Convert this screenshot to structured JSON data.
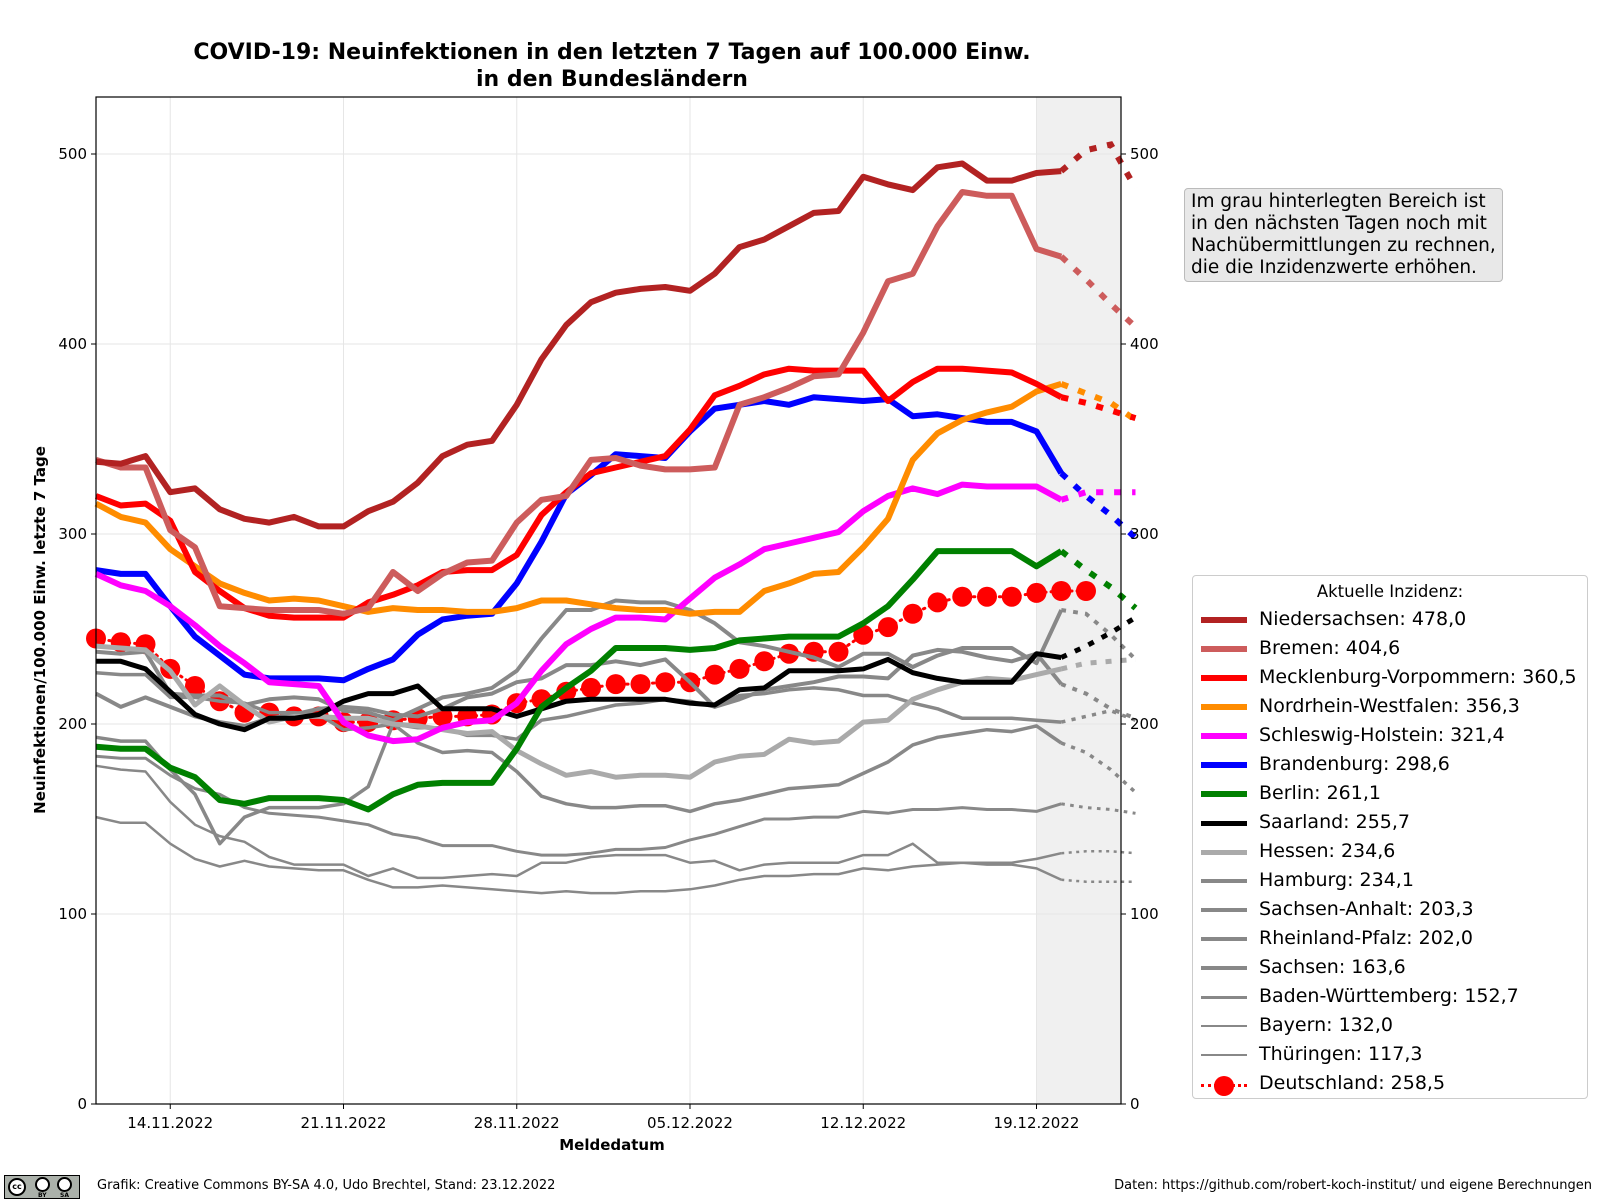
{
  "chart_data": {
    "type": "line",
    "title": "COVID-19: Neuinfektionen in den letzten 7 Tagen auf 100.000 Einw.",
    "subtitle": "in den Bundesländern",
    "xlabel": "Meldedatum",
    "ylabel": "Neuinfektionen/100.000 Einw. letzte 7 Tage",
    "ylim": [
      0,
      530
    ],
    "yticks": [
      0,
      100,
      200,
      300,
      400,
      500
    ],
    "ytick_labels": [
      "0",
      "100",
      "200",
      "300",
      "400",
      "500"
    ],
    "xtick_labels": [
      "14.11.2022",
      "21.11.2022",
      "28.11.2022",
      "05.12.2022",
      "12.12.2022",
      "19.12.2022"
    ],
    "x_start_date": "11.11.2022",
    "x_solid_end_date": "20.12.2022",
    "x_extrapolated_dates": [
      "21.12.2022",
      "22.12.2022",
      "23.12.2022"
    ],
    "grid": true,
    "legend_position": "right",
    "shaded_region_from": "19.12.2022",
    "legend_title": "Aktuelle Inzidenz:",
    "series": [
      {
        "name": "Niedersachsen",
        "current": "478,0",
        "color": "#b22222",
        "width": 6,
        "values": [
          338,
          337,
          341,
          322,
          324,
          313,
          308,
          306,
          309,
          304,
          304,
          312,
          317,
          327,
          341,
          347,
          349,
          368,
          392,
          410,
          422,
          427,
          429,
          430,
          428,
          437,
          451,
          455,
          462,
          469,
          470,
          488,
          484,
          481,
          493,
          495,
          486,
          486,
          490,
          491
        ],
        "extrapolated": [
          502,
          505,
          482
        ]
      },
      {
        "name": "Bremen",
        "current": "404,6",
        "color": "#cd5c5c",
        "width": 6,
        "values": [
          339,
          335,
          335,
          302,
          293,
          262,
          261,
          260,
          260,
          260,
          258,
          261,
          280,
          270,
          279,
          285,
          286,
          306,
          318,
          320,
          339,
          340,
          336,
          334,
          334,
          335,
          368,
          372,
          377,
          383,
          384,
          406,
          433,
          437,
          462,
          480,
          478,
          478,
          450,
          446
        ],
        "extrapolated": [
          434,
          421,
          409
        ]
      },
      {
        "name": "Mecklenburg-Vorpommern",
        "current": "360,5",
        "color": "#ff0000",
        "width": 6,
        "values": [
          320,
          315,
          316,
          307,
          280,
          270,
          261,
          257,
          256,
          256,
          256,
          264,
          268,
          273,
          280,
          281,
          281,
          289,
          310,
          322,
          332,
          335,
          338,
          341,
          355,
          373,
          378,
          384,
          387,
          386,
          386,
          386,
          370,
          380,
          387,
          387,
          386,
          385,
          379,
          372
        ],
        "extrapolated": [
          369,
          365,
          361
        ]
      },
      {
        "name": "Nordrhein-Westfalen",
        "current": "356,3",
        "color": "#ff8c00",
        "width": 6,
        "values": [
          316,
          309,
          306,
          292,
          283,
          274,
          269,
          265,
          266,
          265,
          262,
          259,
          261,
          260,
          260,
          259,
          259,
          261,
          265,
          265,
          263,
          261,
          260,
          260,
          258,
          259,
          259,
          270,
          274,
          279,
          280,
          293,
          308,
          339,
          353,
          360,
          364,
          367,
          375,
          379
        ],
        "extrapolated": [
          374,
          369,
          360
        ]
      },
      {
        "name": "Schleswig-Holstein",
        "current": "321,4",
        "color": "#ff00ff",
        "width": 6,
        "values": [
          279,
          273,
          270,
          262,
          252,
          241,
          232,
          222,
          221,
          220,
          201,
          194,
          191,
          192,
          198,
          201,
          202,
          211,
          228,
          242,
          250,
          256,
          256,
          255,
          266,
          277,
          284,
          292,
          295,
          298,
          301,
          312,
          320,
          324,
          321,
          326,
          325,
          325,
          325,
          318
        ],
        "extrapolated": [
          322,
          322,
          322
        ]
      },
      {
        "name": "Brandenburg",
        "current": "298,6",
        "color": "#0000ff",
        "width": 6,
        "values": [
          281,
          279,
          279,
          262,
          246,
          236,
          226,
          224,
          224,
          224,
          223,
          229,
          234,
          247,
          255,
          257,
          258,
          274,
          296,
          321,
          331,
          342,
          341,
          340,
          354,
          366,
          368,
          370,
          368,
          372,
          371,
          370,
          371,
          362,
          363,
          361,
          359,
          359,
          354,
          332
        ],
        "extrapolated": [
          320,
          310,
          298
        ]
      },
      {
        "name": "Berlin",
        "current": "261,1",
        "color": "#008000",
        "width": 6,
        "values": [
          188,
          187,
          187,
          177,
          172,
          160,
          158,
          161,
          161,
          161,
          160,
          155,
          163,
          168,
          169,
          169,
          169,
          187,
          209,
          219,
          228,
          240,
          240,
          240,
          239,
          240,
          244,
          245,
          246,
          246,
          246,
          253,
          262,
          276,
          291,
          291,
          291,
          291,
          283,
          291
        ],
        "extrapolated": [
          281,
          272,
          261
        ]
      },
      {
        "name": "Saarland",
        "current": "255,7",
        "color": "#000000",
        "width": 5,
        "values": [
          233,
          233,
          229,
          217,
          205,
          200,
          197,
          203,
          203,
          205,
          212,
          216,
          216,
          220,
          208,
          208,
          208,
          204,
          208,
          212,
          213,
          213,
          213,
          213,
          211,
          210,
          218,
          219,
          228,
          228,
          228,
          229,
          234,
          227,
          224,
          222,
          222,
          222,
          237,
          235
        ],
        "extrapolated": [
          241,
          248,
          256
        ]
      },
      {
        "name": "Hessen",
        "current": "234,6",
        "color": "#aaaaaa",
        "width": 5,
        "values": [
          241,
          240,
          239,
          228,
          210,
          220,
          210,
          201,
          204,
          204,
          203,
          203,
          200,
          199,
          197,
          195,
          196,
          186,
          179,
          173,
          175,
          172,
          173,
          173,
          172,
          180,
          183,
          184,
          192,
          190,
          191,
          201,
          202,
          213,
          218,
          222,
          224,
          223,
          226,
          229
        ],
        "extrapolated": [
          232,
          233,
          234
        ]
      },
      {
        "name": "Hamburg",
        "current": "234,1",
        "color": "#888888",
        "width": 4,
        "values": [
          238,
          237,
          238,
          216,
          215,
          215,
          210,
          213,
          214,
          213,
          207,
          206,
          202,
          208,
          214,
          216,
          219,
          228,
          245,
          260,
          260,
          265,
          264,
          264,
          260,
          253,
          243,
          241,
          238,
          235,
          230,
          237,
          237,
          230,
          236,
          240,
          240,
          240,
          232,
          260
        ],
        "extrapolated": [
          258,
          247,
          234
        ]
      },
      {
        "name": "Sachsen-Anhalt",
        "current": "203,3",
        "color": "#888888",
        "width": 4,
        "values": [
          216,
          209,
          214,
          209,
          204,
          201,
          199,
          203,
          205,
          208,
          209,
          208,
          205,
          204,
          208,
          214,
          216,
          222,
          224,
          231,
          231,
          233,
          231,
          234,
          222,
          209,
          213,
          218,
          220,
          222,
          225,
          225,
          224,
          236,
          239,
          238,
          235,
          233,
          237,
          221
        ],
        "extrapolated": [
          216,
          208,
          203
        ]
      },
      {
        "name": "Rheinland-Pfalz",
        "current": "202,0",
        "color": "#888888",
        "width": 3.5,
        "values": [
          227,
          226,
          226,
          214,
          214,
          212,
          211,
          206,
          206,
          205,
          197,
          198,
          200,
          198,
          198,
          194,
          194,
          192,
          202,
          204,
          207,
          210,
          211,
          213,
          212,
          209,
          215,
          216,
          218,
          219,
          218,
          215,
          215,
          211,
          208,
          203,
          203,
          203,
          202,
          201
        ],
        "extrapolated": [
          204,
          207,
          202
        ]
      },
      {
        "name": "Sachsen",
        "current": "163,6",
        "color": "#888888",
        "width": 3.5,
        "values": [
          193,
          191,
          191,
          176,
          163,
          137,
          151,
          156,
          156,
          156,
          158,
          167,
          200,
          190,
          185,
          186,
          185,
          175,
          162,
          158,
          156,
          156,
          157,
          157,
          154,
          158,
          160,
          163,
          166,
          167,
          168,
          174,
          180,
          189,
          193,
          195,
          197,
          196,
          199,
          190
        ],
        "extrapolated": [
          185,
          176,
          164
        ]
      },
      {
        "name": "Baden-Württemberg",
        "current": "152,7",
        "color": "#888888",
        "width": 3,
        "values": [
          183,
          182,
          182,
          173,
          166,
          163,
          156,
          153,
          152,
          151,
          149,
          147,
          142,
          140,
          136,
          136,
          136,
          133,
          131,
          131,
          132,
          134,
          134,
          135,
          139,
          142,
          146,
          150,
          150,
          151,
          151,
          154,
          153,
          155,
          155,
          156,
          155,
          155,
          154,
          158
        ],
        "extrapolated": [
          156,
          155,
          153
        ]
      },
      {
        "name": "Bayern",
        "current": "132,0",
        "color": "#888888",
        "width": 2.5,
        "values": [
          178,
          176,
          175,
          159,
          147,
          141,
          138,
          130,
          126,
          126,
          126,
          120,
          124,
          119,
          119,
          120,
          121,
          120,
          127,
          127,
          130,
          131,
          131,
          131,
          127,
          128,
          123,
          126,
          127,
          127,
          127,
          131,
          131,
          137,
          127,
          127,
          127,
          127,
          129,
          132
        ],
        "extrapolated": [
          133,
          133,
          132
        ]
      },
      {
        "name": "Thüringen",
        "current": "117,3",
        "color": "#888888",
        "width": 2.5,
        "values": [
          151,
          148,
          148,
          137,
          129,
          125,
          128,
          125,
          124,
          123,
          123,
          118,
          114,
          114,
          115,
          114,
          113,
          112,
          111,
          112,
          111,
          111,
          112,
          112,
          113,
          115,
          118,
          120,
          120,
          121,
          121,
          124,
          123,
          125,
          126,
          127,
          126,
          126,
          124,
          118
        ],
        "extrapolated": [
          117,
          117,
          117
        ]
      },
      {
        "name": "Deutschland",
        "current": "258,5",
        "color": "#ff0000",
        "width": 3,
        "markers": true,
        "values": [
          245,
          243,
          242,
          229,
          220,
          212,
          206,
          206,
          204,
          204,
          201,
          201,
          202,
          203,
          204,
          204,
          205,
          211,
          213,
          217,
          219,
          221,
          221,
          222,
          222,
          226,
          229,
          233,
          237,
          238,
          238,
          247,
          251,
          258,
          264,
          267,
          267,
          267,
          269,
          270,
          270
        ],
        "extrapolated": []
      }
    ]
  },
  "note": "Im grau hinterlegten Bereich ist\nin den nächsten Tagen noch mit\nNachübermittlungen zu rechnen,\ndie die Inzidenzwerte erhöhen.",
  "footer": {
    "license_logo": "cc-by-sa-logo",
    "left": "Grafik: Creative Commons BY-SA 4.0, Udo Brechtel, Stand: 23.12.2022",
    "right": "Daten: https://github.com/robert-koch-institut/ und eigene Berechnungen"
  }
}
